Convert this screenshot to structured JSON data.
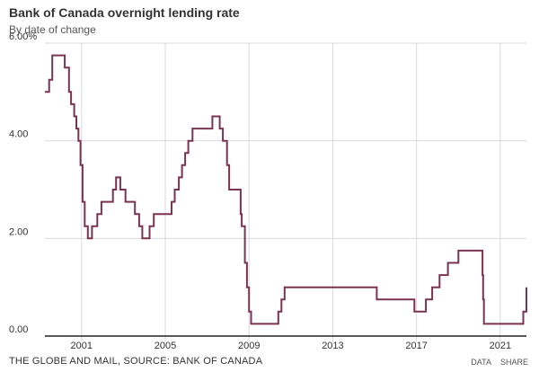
{
  "header": {
    "title": "Bank of Canada overnight lending rate",
    "subtitle": "By date of change"
  },
  "footer": {
    "source": "THE GLOBE AND MAIL, SOURCE: BANK OF CANADA",
    "data_link": "DATA",
    "share_link": "SHARE"
  },
  "colors": {
    "line": "#7a3350",
    "grid": "#d9d9d9",
    "axis": "#222222"
  },
  "chart_data": {
    "type": "line",
    "step": true,
    "title": "Bank of Canada overnight lending rate",
    "subtitle": "By date of change",
    "xlabel": "",
    "ylabel": "",
    "xlim": [
      1999.25,
      2022.25
    ],
    "ylim": [
      0,
      6
    ],
    "yticks": [
      0,
      2,
      4,
      6
    ],
    "ytick_labels": [
      "0.00",
      "2.00",
      "4.00",
      "6.00%"
    ],
    "xticks": [
      2001,
      2005,
      2009,
      2013,
      2017,
      2021
    ],
    "xtick_labels": [
      "2001",
      "2005",
      "2009",
      "2013",
      "2017",
      "2021"
    ],
    "grid": true,
    "series": [
      {
        "x": [
          1999.25,
          1999.45,
          1999.6,
          2000.2,
          2000.4,
          2000.5,
          2000.65,
          2000.75,
          2000.85,
          2000.95,
          2001.05,
          2001.15,
          2001.3,
          2001.5,
          2001.75,
          2001.95,
          2002.5,
          2002.65,
          2002.85,
          2003.1,
          2003.25,
          2003.55,
          2003.75,
          2003.9,
          2004.25,
          2004.45,
          2004.6,
          2005.3,
          2005.45,
          2005.65,
          2005.8,
          2005.95,
          2006.1,
          2006.3,
          2007.25,
          2007.6,
          2007.75,
          2007.95,
          2008.05,
          2008.2,
          2008.6,
          2008.65,
          2008.8,
          2008.9,
          2009.0,
          2009.1,
          2009.2,
          2009.75,
          2010.4,
          2010.55,
          2010.7,
          2014.55,
          2015.1,
          2016.9,
          2017.45,
          2017.55,
          2017.75,
          2018.1,
          2018.5,
          2018.7,
          2019.0,
          2020.15,
          2020.18,
          2020.22,
          2022.0,
          2022.1,
          2022.25
        ],
        "y": [
          5.0,
          5.25,
          5.75,
          5.5,
          5.0,
          4.75,
          4.5,
          4.25,
          4.0,
          3.5,
          2.75,
          2.25,
          2.0,
          2.25,
          2.5,
          2.75,
          3.0,
          3.25,
          3.0,
          2.75,
          2.75,
          2.5,
          2.25,
          2.0,
          2.25,
          2.5,
          2.5,
          2.75,
          3.0,
          3.25,
          3.5,
          3.75,
          4.0,
          4.25,
          4.5,
          4.25,
          4.0,
          3.5,
          3.0,
          3.0,
          2.5,
          2.25,
          1.5,
          1.0,
          0.5,
          0.25,
          0.25,
          0.25,
          0.5,
          0.75,
          1.0,
          1.0,
          0.75,
          0.5,
          0.75,
          0.75,
          1.0,
          1.25,
          1.5,
          1.5,
          1.75,
          1.25,
          0.75,
          0.25,
          0.25,
          0.5,
          1.0
        ]
      }
    ]
  }
}
